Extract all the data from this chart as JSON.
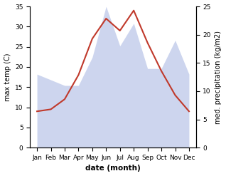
{
  "months": [
    "Jan",
    "Feb",
    "Mar",
    "Apr",
    "May",
    "Jun",
    "Jul",
    "Aug",
    "Sep",
    "Oct",
    "Nov",
    "Dec"
  ],
  "temp": [
    9,
    9.5,
    12,
    18,
    27,
    32,
    29,
    34,
    26,
    19,
    13,
    9
  ],
  "precip": [
    13,
    12,
    11,
    11,
    16,
    25,
    18,
    22,
    14,
    14,
    19,
    13
  ],
  "temp_color": "#c0392b",
  "precip_fill_color": "#b8c4e8",
  "temp_ylim": [
    0,
    35
  ],
  "precip_ylim": [
    0,
    25
  ],
  "temp_yticks": [
    0,
    5,
    10,
    15,
    20,
    25,
    30,
    35
  ],
  "precip_yticks": [
    0,
    5,
    10,
    15,
    20,
    25
  ],
  "xlabel": "date (month)",
  "ylabel_left": "max temp (C)",
  "ylabel_right": "med. precipitation (kg/m2)",
  "axis_fontsize": 7,
  "tick_fontsize": 6.5
}
